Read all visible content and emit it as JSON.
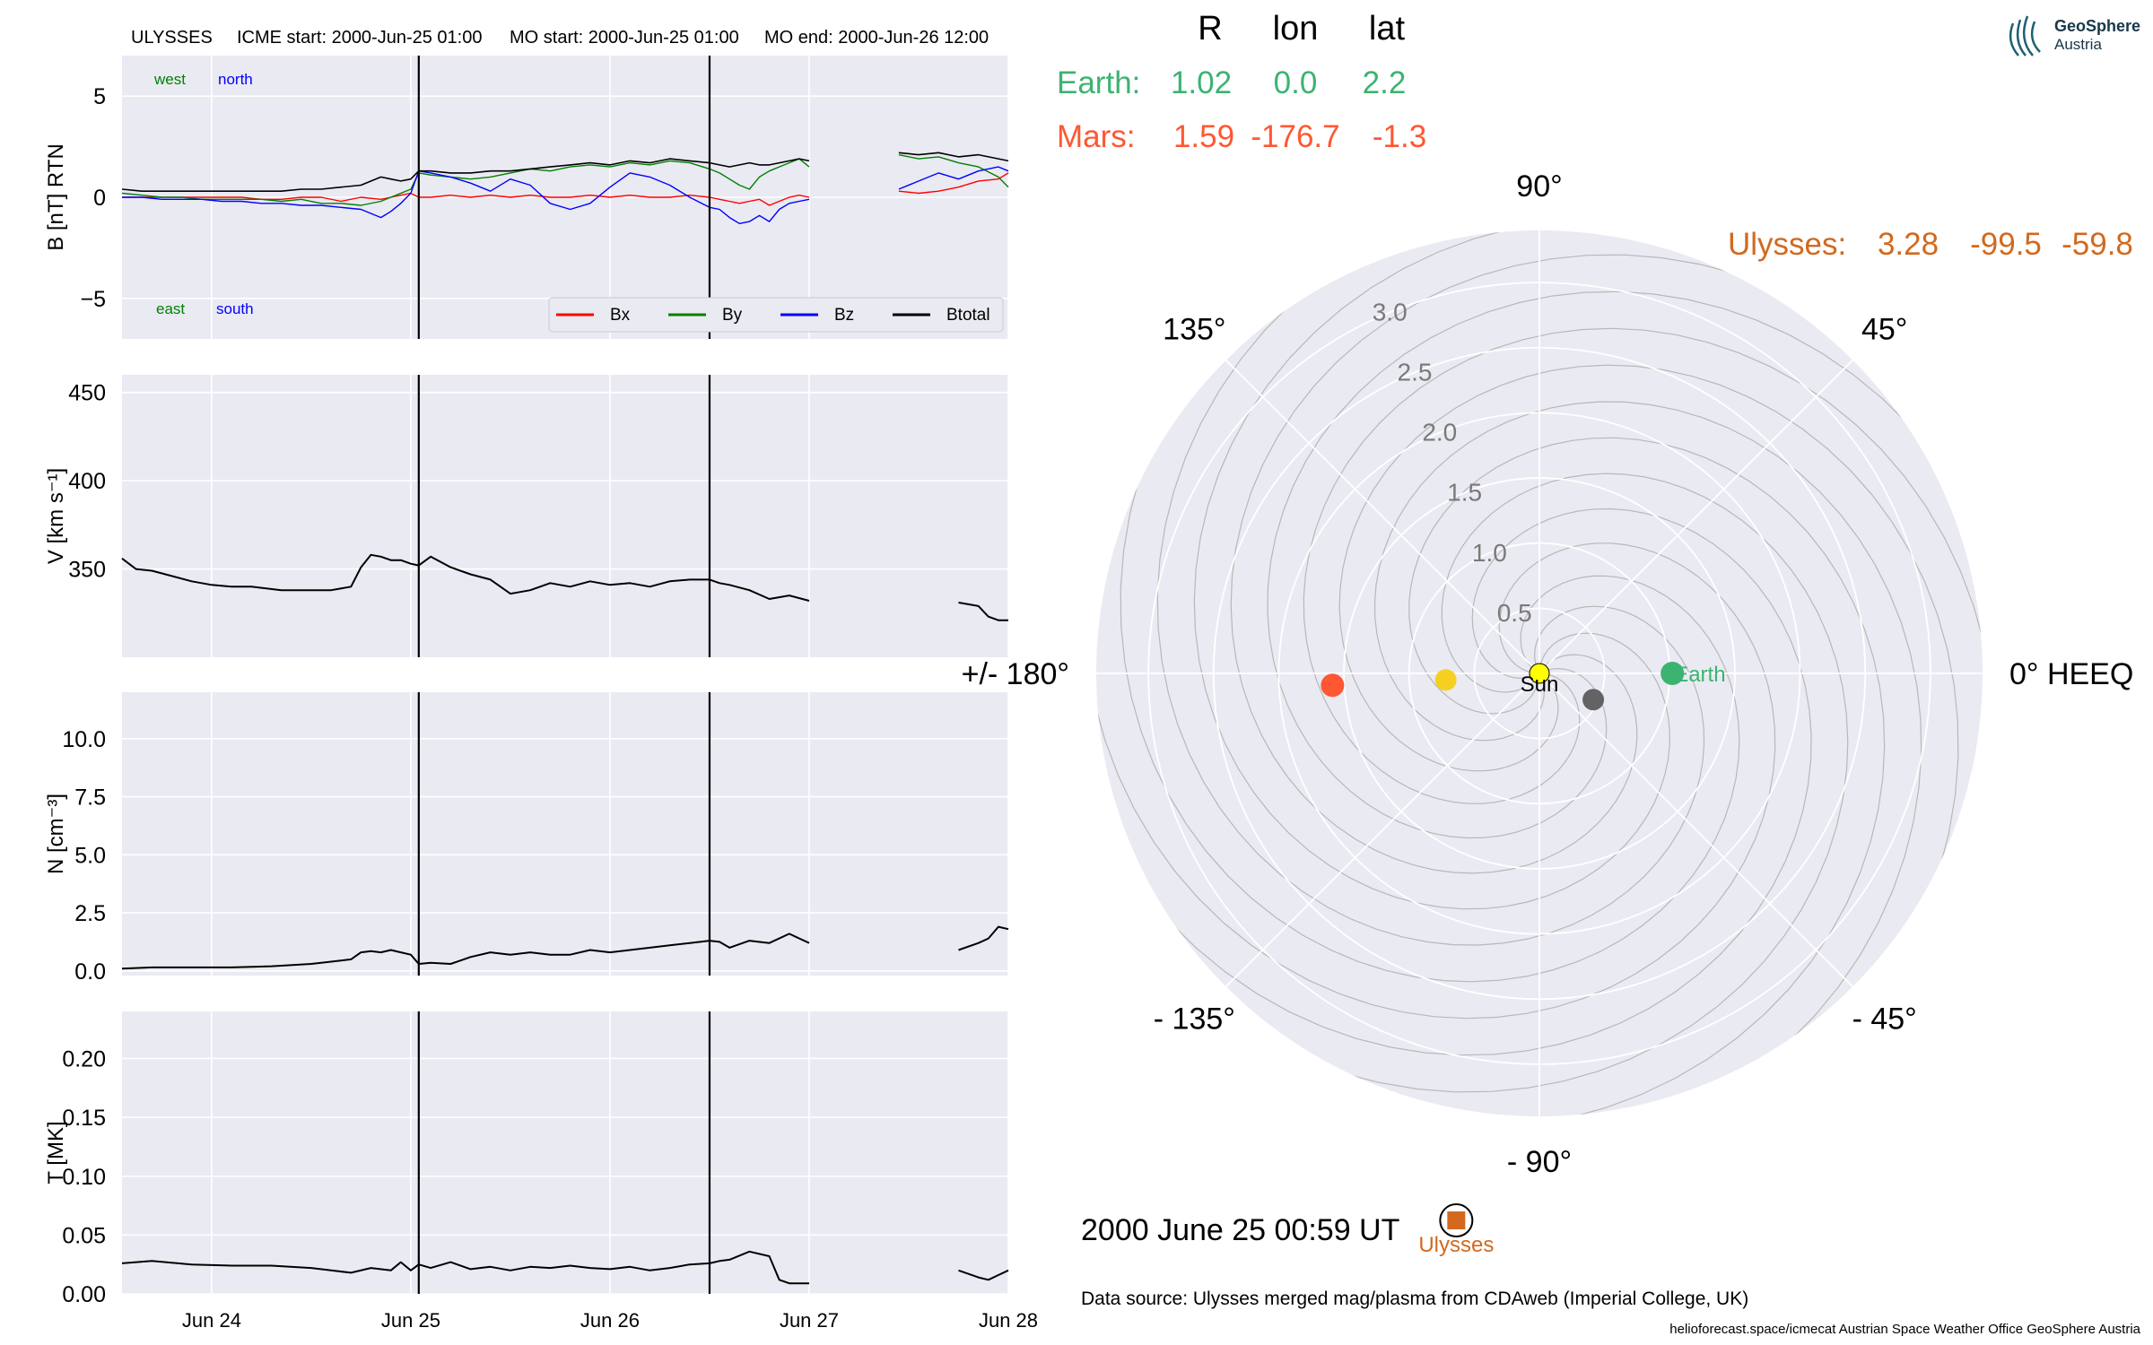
{
  "header": {
    "spacecraft": "ULYSSES",
    "icme_start": "ICME start: 2000-Jun-25 01:00",
    "mo_start": "MO start: 2000-Jun-25 01:00",
    "mo_end": "MO end: 2000-Jun-26 12:00"
  },
  "colors": {
    "panel_bg": "#eaeaf2",
    "grid": "#ffffff",
    "bx": "#ff0000",
    "by": "#008000",
    "bz": "#0000ff",
    "btotal": "#000000",
    "earth": "#3cb371",
    "mars": "#ff5733",
    "ulysses": "#d2691e",
    "sun": "#ffff00",
    "venus": "#f5d020",
    "mercury": "#636363",
    "event_line": "#000000",
    "spiral": "#b8b8b8"
  },
  "x_axis": {
    "ticks": [
      {
        "day": 24,
        "label": "Jun 24"
      },
      {
        "day": 25,
        "label": "Jun 25"
      },
      {
        "day": 26,
        "label": "Jun 26"
      },
      {
        "day": 27,
        "label": "Jun 27"
      },
      {
        "day": 28,
        "label": "Jun 28"
      }
    ],
    "range_days": [
      23.55,
      28.0
    ],
    "event_lines_days": [
      25.04,
      26.5
    ]
  },
  "chart_data": [
    {
      "type": "line",
      "id": "b",
      "ylabel": "B [nT] RTN",
      "ylim": [
        -7,
        7
      ],
      "yticks": [
        {
          "v": 5,
          "label": "5"
        },
        {
          "v": 0,
          "label": "0"
        },
        {
          "v": -5,
          "label": "−5"
        }
      ],
      "annotations": {
        "west": "west",
        "north": "north",
        "east": "east",
        "south": "south"
      },
      "legend": [
        "Bx",
        "By",
        "Bz",
        "Btotal"
      ],
      "x": [
        23.55,
        23.65,
        23.75,
        23.85,
        23.95,
        24.05,
        24.15,
        24.25,
        24.35,
        24.45,
        24.55,
        24.65,
        24.75,
        24.85,
        24.9,
        24.95,
        25.0,
        25.04,
        25.1,
        25.2,
        25.3,
        25.4,
        25.5,
        25.6,
        25.7,
        25.8,
        25.9,
        26.0,
        26.1,
        26.2,
        26.3,
        26.4,
        26.5,
        26.55,
        26.6,
        26.65,
        26.7,
        26.75,
        26.8,
        26.85,
        26.9,
        26.95,
        27.0,
        27.4,
        27.45,
        27.55,
        27.65,
        27.75,
        27.85,
        27.95,
        28.0
      ],
      "series": [
        {
          "name": "Bx",
          "values": [
            0.0,
            0.0,
            0.0,
            0.0,
            0.0,
            0.0,
            0.0,
            -0.1,
            -0.1,
            0.0,
            0.0,
            -0.2,
            0.0,
            -0.1,
            0.0,
            0.1,
            0.2,
            0.0,
            0.0,
            0.1,
            0.0,
            0.1,
            0.0,
            0.1,
            0.0,
            0.0,
            0.1,
            0.0,
            0.1,
            0.0,
            0.0,
            0.1,
            0.0,
            -0.1,
            -0.2,
            -0.3,
            -0.2,
            -0.1,
            -0.4,
            -0.2,
            0.0,
            0.1,
            0.0,
            null,
            0.3,
            0.2,
            0.3,
            0.5,
            0.8,
            0.9,
            1.2
          ]
        },
        {
          "name": "By",
          "values": [
            0.2,
            0.1,
            0.0,
            0.0,
            -0.1,
            -0.1,
            -0.1,
            -0.1,
            -0.2,
            -0.1,
            -0.3,
            -0.3,
            -0.4,
            -0.2,
            0.0,
            0.2,
            0.4,
            1.2,
            1.1,
            1.0,
            0.9,
            1.0,
            1.2,
            1.4,
            1.3,
            1.5,
            1.6,
            1.5,
            1.7,
            1.6,
            1.8,
            1.7,
            1.4,
            1.2,
            0.9,
            0.6,
            0.4,
            1.0,
            1.3,
            1.5,
            1.7,
            1.9,
            1.5,
            null,
            2.1,
            1.9,
            2.0,
            1.7,
            1.5,
            1.0,
            0.5
          ]
        },
        {
          "name": "Bz",
          "values": [
            0.0,
            0.0,
            -0.1,
            -0.1,
            -0.1,
            -0.2,
            -0.2,
            -0.3,
            -0.3,
            -0.4,
            -0.4,
            -0.5,
            -0.6,
            -1.0,
            -0.7,
            -0.3,
            0.2,
            1.3,
            1.2,
            1.0,
            0.7,
            0.3,
            0.9,
            0.6,
            -0.3,
            -0.6,
            -0.3,
            0.5,
            1.2,
            1.0,
            0.6,
            0.0,
            -0.5,
            -0.6,
            -1.0,
            -1.3,
            -1.2,
            -0.9,
            -1.2,
            -0.6,
            -0.3,
            -0.2,
            -0.1,
            null,
            0.4,
            0.8,
            1.2,
            0.9,
            1.3,
            1.5,
            1.3
          ]
        },
        {
          "name": "Btotal",
          "values": [
            0.4,
            0.3,
            0.3,
            0.3,
            0.3,
            0.3,
            0.3,
            0.3,
            0.3,
            0.4,
            0.4,
            0.5,
            0.6,
            1.0,
            0.9,
            0.8,
            0.9,
            1.3,
            1.3,
            1.2,
            1.2,
            1.3,
            1.3,
            1.4,
            1.5,
            1.6,
            1.7,
            1.6,
            1.8,
            1.7,
            1.9,
            1.8,
            1.7,
            1.6,
            1.5,
            1.6,
            1.7,
            1.6,
            1.6,
            1.7,
            1.8,
            1.9,
            1.8,
            null,
            2.2,
            2.1,
            2.2,
            2.0,
            2.1,
            1.9,
            1.8
          ]
        }
      ]
    },
    {
      "type": "line",
      "id": "v",
      "ylabel": "V [km s⁻¹]",
      "ylim": [
        300,
        460
      ],
      "yticks": [
        {
          "v": 450,
          "label": "450"
        },
        {
          "v": 400,
          "label": "400"
        },
        {
          "v": 350,
          "label": "350"
        }
      ],
      "x": [
        23.55,
        23.62,
        23.7,
        23.8,
        23.9,
        24.0,
        24.1,
        24.2,
        24.35,
        24.5,
        24.6,
        24.7,
        24.75,
        24.8,
        24.85,
        24.9,
        24.95,
        25.0,
        25.04,
        25.1,
        25.2,
        25.3,
        25.4,
        25.5,
        25.55,
        25.6,
        25.7,
        25.8,
        25.9,
        26.0,
        26.1,
        26.2,
        26.3,
        26.4,
        26.5,
        26.55,
        26.6,
        26.7,
        26.8,
        26.9,
        27.0,
        27.65,
        27.75,
        27.85,
        27.9,
        27.95,
        28.0
      ],
      "series": [
        {
          "name": "V",
          "values": [
            356,
            350,
            349,
            346,
            343,
            341,
            340,
            340,
            338,
            338,
            338,
            340,
            351,
            358,
            357,
            355,
            355,
            353,
            352,
            357,
            351,
            347,
            344,
            336,
            337,
            338,
            342,
            340,
            343,
            341,
            342,
            340,
            343,
            344,
            344,
            342,
            341,
            338,
            333,
            335,
            332,
            null,
            331,
            329,
            323,
            321,
            321
          ]
        }
      ]
    },
    {
      "type": "line",
      "id": "n",
      "ylabel": "N [cm⁻³]",
      "ylim": [
        -0.2,
        12
      ],
      "yticks": [
        {
          "v": 10.0,
          "label": "10.0"
        },
        {
          "v": 7.5,
          "label": "7.5"
        },
        {
          "v": 5.0,
          "label": "5.0"
        },
        {
          "v": 2.5,
          "label": "2.5"
        },
        {
          "v": 0.0,
          "label": "0.0"
        }
      ],
      "x": [
        23.55,
        23.7,
        23.9,
        24.1,
        24.3,
        24.5,
        24.6,
        24.7,
        24.75,
        24.8,
        24.85,
        24.9,
        24.95,
        25.0,
        25.04,
        25.1,
        25.2,
        25.3,
        25.4,
        25.5,
        25.6,
        25.7,
        25.8,
        25.9,
        26.0,
        26.1,
        26.2,
        26.3,
        26.4,
        26.5,
        26.55,
        26.6,
        26.7,
        26.8,
        26.9,
        27.0,
        27.65,
        27.75,
        27.85,
        27.9,
        27.95,
        28.0
      ],
      "series": [
        {
          "name": "N",
          "values": [
            0.1,
            0.15,
            0.15,
            0.15,
            0.2,
            0.3,
            0.4,
            0.5,
            0.8,
            0.85,
            0.8,
            0.9,
            0.8,
            0.7,
            0.3,
            0.35,
            0.3,
            0.6,
            0.8,
            0.7,
            0.8,
            0.7,
            0.7,
            0.9,
            0.8,
            0.9,
            1.0,
            1.1,
            1.2,
            1.3,
            1.25,
            1.0,
            1.3,
            1.2,
            1.6,
            1.2,
            null,
            0.9,
            1.2,
            1.4,
            1.9,
            1.8
          ]
        }
      ]
    },
    {
      "type": "line",
      "id": "t",
      "ylabel": "T [MK]",
      "ylim": [
        0,
        0.24
      ],
      "yticks": [
        {
          "v": 0.2,
          "label": "0.20"
        },
        {
          "v": 0.15,
          "label": "0.15"
        },
        {
          "v": 0.1,
          "label": "0.10"
        },
        {
          "v": 0.05,
          "label": "0.05"
        },
        {
          "v": 0.0,
          "label": "0.00"
        }
      ],
      "x": [
        23.55,
        23.7,
        23.9,
        24.1,
        24.3,
        24.5,
        24.6,
        24.7,
        24.8,
        24.9,
        24.95,
        25.0,
        25.04,
        25.1,
        25.2,
        25.3,
        25.4,
        25.5,
        25.6,
        25.7,
        25.8,
        25.9,
        26.0,
        26.1,
        26.2,
        26.3,
        26.4,
        26.5,
        26.55,
        26.6,
        26.7,
        26.8,
        26.85,
        26.9,
        27.0,
        27.65,
        27.75,
        27.85,
        27.9,
        27.95,
        28.0
      ],
      "series": [
        {
          "name": "T",
          "values": [
            0.026,
            0.028,
            0.025,
            0.024,
            0.024,
            0.022,
            0.02,
            0.018,
            0.022,
            0.02,
            0.027,
            0.02,
            0.025,
            0.022,
            0.027,
            0.021,
            0.023,
            0.02,
            0.023,
            0.022,
            0.024,
            0.022,
            0.021,
            0.023,
            0.02,
            0.022,
            0.025,
            0.026,
            0.028,
            0.029,
            0.036,
            0.032,
            0.012,
            0.009,
            0.009,
            null,
            0.02,
            0.014,
            0.012,
            0.016,
            0.02
          ]
        }
      ]
    },
    {
      "type": "scatter",
      "id": "polar",
      "theta_labels": [
        {
          "deg": 0,
          "label": "0° HEEQ"
        },
        {
          "deg": 45,
          "label": "45°"
        },
        {
          "deg": 90,
          "label": "90°"
        },
        {
          "deg": 135,
          "label": "135°"
        },
        {
          "deg": 180,
          "label": "+/- 180°"
        },
        {
          "deg": -135,
          "label": "- 135°"
        },
        {
          "deg": -90,
          "label": "- 90°"
        },
        {
          "deg": -45,
          "label": "- 45°"
        }
      ],
      "r_ticks": [
        {
          "r": 0.5,
          "label": "0.5"
        },
        {
          "r": 1.0,
          "label": "1.0"
        },
        {
          "r": 1.5,
          "label": "1.5"
        },
        {
          "r": 2.0,
          "label": "2.0"
        },
        {
          "r": 2.5,
          "label": "2.5"
        },
        {
          "r": 3.0,
          "label": "3.0"
        }
      ],
      "rmax": 3.4,
      "columns": {
        "r": "R",
        "lon": "lon",
        "lat": "lat"
      },
      "bodies": [
        {
          "name": "Sun",
          "label": "Sun",
          "r": 0.0,
          "lon": 0.0,
          "color_key": "sun",
          "size": 11
        },
        {
          "name": "Earth",
          "label": "Earth",
          "r": 1.02,
          "lon": 0.0,
          "lat": 2.2,
          "color_key": "earth",
          "size": 13
        },
        {
          "name": "Mars",
          "label": "",
          "r": 1.59,
          "lon": -176.7,
          "lat": -1.3,
          "color_key": "mars",
          "size": 13
        },
        {
          "name": "Venus",
          "label": "",
          "r": 0.72,
          "lon": -176.0,
          "color_key": "venus",
          "size": 12
        },
        {
          "name": "Mercury",
          "label": "",
          "r": 0.46,
          "lon": -26.0,
          "color_key": "mercury",
          "size": 12
        },
        {
          "name": "Ulysses",
          "label": "Ulysses",
          "r": 3.28,
          "lon": -99.5,
          "lat": -59.8,
          "color_key": "ulysses",
          "size": 10
        }
      ],
      "readout": {
        "earth": {
          "name": "Earth:",
          "r": "1.02",
          "lon": "0.0",
          "lat": "2.2"
        },
        "mars": {
          "name": "Mars:",
          "r": "1.59",
          "lon": "-176.7",
          "lat": "-1.3"
        },
        "ulysses": {
          "name": "Ulysses:",
          "r": "3.28",
          "lon": "-99.5",
          "lat": "-59.8"
        }
      }
    }
  ],
  "timestamp": "2000 June 25  00:59 UT",
  "data_source": "Data source: Ulysses merged mag/plasma from CDAweb (Imperial College, UK)",
  "footer": "helioforecast.space/icmecat   Austrian Space Weather Office   GeoSphere Austria",
  "logo": {
    "line1": "GeoSphere",
    "line2": "Austria",
    "icon": "geosphere-logo-icon"
  }
}
